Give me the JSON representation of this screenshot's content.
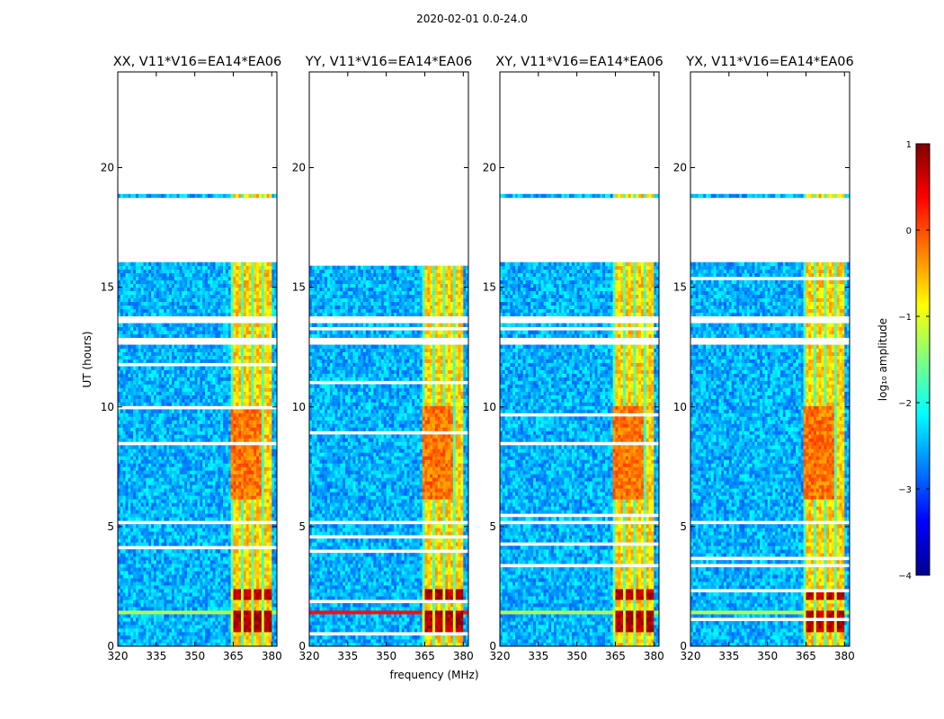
{
  "suptitle": "2020-02-01 0.0-24.0",
  "chart_data": {
    "type": "heatmap",
    "panels": [
      {
        "title": "XX, V11*V16=EA14*EA06",
        "pol": "XX"
      },
      {
        "title": "YY, V11*V16=EA14*EA06",
        "pol": "YY"
      },
      {
        "title": "XY, V11*V16=EA14*EA06",
        "pol": "XY"
      },
      {
        "title": "YX, V11*V16=EA14*EA06",
        "pol": "YX"
      }
    ],
    "xlabel": "frequency (MHz)",
    "ylabel": "UT (hours)",
    "xlim": [
      320,
      382
    ],
    "ylim": [
      0,
      24
    ],
    "x_ticks": [
      320,
      335,
      350,
      365,
      380
    ],
    "x_tick_labels": [
      "320",
      "335",
      "350",
      "365",
      "380"
    ],
    "y_ticks": [
      0,
      5,
      10,
      15,
      20
    ],
    "y_tick_labels": [
      "0",
      "5",
      "10",
      "15",
      "20"
    ],
    "colorbar": {
      "label": "log₁₀ amplitude",
      "ticks": [
        1,
        0,
        -1,
        -2,
        -3,
        -4
      ],
      "tick_labels": [
        "1",
        "0",
        "−1",
        "−2",
        "−3",
        "−4"
      ],
      "range": [
        -4,
        1
      ],
      "colormap": "jet"
    },
    "data_coverage_hours": [
      [
        0,
        16.0
      ],
      [
        18.6,
        18.9
      ]
    ],
    "bright_band_mhz": [
      364,
      380
    ],
    "flagged_gap_hours": [
      [
        5.0,
        5.2
      ],
      [
        12.5,
        12.8
      ],
      [
        13.5,
        13.7
      ],
      [
        16.0,
        18.6
      ]
    ],
    "strong_rfi_hours": [
      [
        0.5,
        1.5
      ],
      [
        1.8,
        2.3
      ]
    ]
  },
  "colors": {
    "low": "#00008f",
    "mid": "#2b7bff",
    "high": "#ffea00",
    "peak": "#800000"
  }
}
